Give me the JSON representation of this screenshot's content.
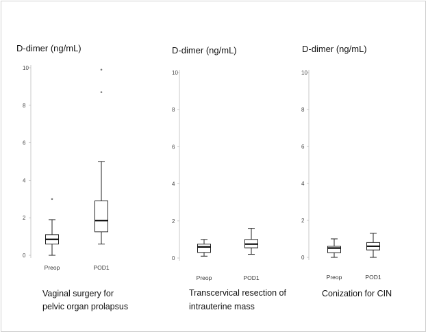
{
  "chart_data": [
    {
      "type": "boxplot",
      "ylabel": "D-dimer (ng/mL)",
      "ylim": [
        0,
        10
      ],
      "yticks": [
        "0",
        "2",
        "4",
        "6",
        "8",
        "10"
      ],
      "categories": [
        "Preop",
        "POD1"
      ],
      "caption": [
        "Vaginal surgery for",
        "pelvic organ prolapsus"
      ],
      "boxes": [
        {
          "min": 0.0,
          "q1": 0.6,
          "median": 0.85,
          "q3": 1.1,
          "max": 1.9,
          "outliers": [
            3.0
          ]
        },
        {
          "min": 0.6,
          "q1": 1.25,
          "median": 1.85,
          "q3": 2.9,
          "max": 5.0,
          "outliers": [
            8.7,
            9.9
          ]
        }
      ]
    },
    {
      "type": "boxplot",
      "ylabel": "D-dimer (ng/mL)",
      "ylim": [
        0,
        10
      ],
      "yticks": [
        "0",
        "2",
        "4",
        "6",
        "8",
        "10"
      ],
      "categories": [
        "Preop",
        "POD1"
      ],
      "caption": [
        "Transcervical resection of",
        "intrauterine mass"
      ],
      "boxes": [
        {
          "min": 0.1,
          "q1": 0.3,
          "median": 0.6,
          "q3": 0.75,
          "max": 1.0,
          "outliers": []
        },
        {
          "min": 0.2,
          "q1": 0.55,
          "median": 0.75,
          "q3": 1.0,
          "max": 1.6,
          "outliers": []
        }
      ]
    },
    {
      "type": "boxplot",
      "ylabel": "D-dimer (ng/mL)",
      "ylim": [
        0,
        10
      ],
      "yticks": [
        "0",
        "2",
        "4",
        "6",
        "8",
        "10"
      ],
      "categories": [
        "Preop",
        "POD1"
      ],
      "caption": [
        "Conization for CIN"
      ],
      "boxes": [
        {
          "min": 0.0,
          "q1": 0.25,
          "median": 0.5,
          "q3": 0.6,
          "max": 1.0,
          "outliers": []
        },
        {
          "min": 0.0,
          "q1": 0.4,
          "median": 0.6,
          "q3": 0.8,
          "max": 1.3,
          "outliers": []
        }
      ]
    }
  ]
}
